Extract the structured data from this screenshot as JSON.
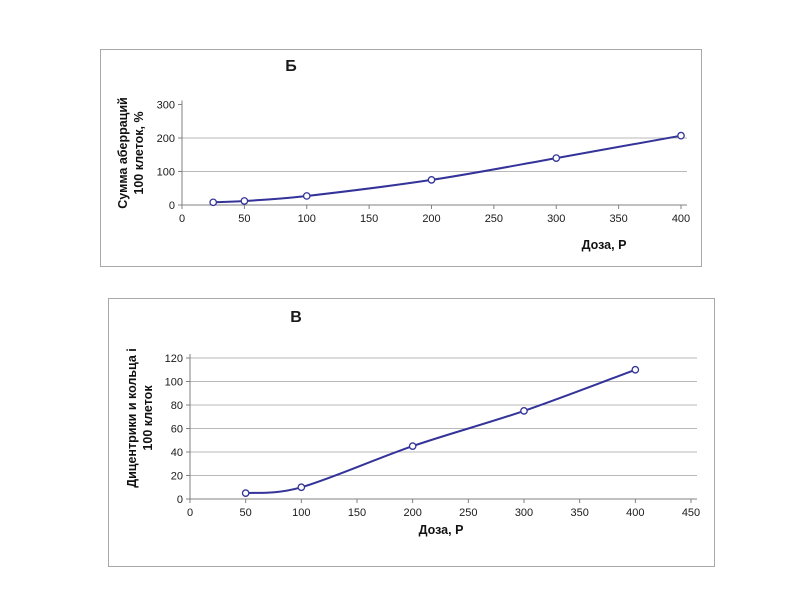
{
  "page": {
    "background": "#ffffff"
  },
  "colors": {
    "line": "#333399",
    "marker_fill": "#ffffff",
    "grid": "#b9b9b9",
    "axis": "#808080",
    "panel_border": "#a8a8a8",
    "text": "#1a1a1a"
  },
  "chart_data": [
    {
      "type": "line",
      "title": "Б",
      "xlabel": "Доза, Р",
      "ylabel_line1": "Сумма аберраций",
      "ylabel_line2": "100 клеток, %",
      "x": [
        25,
        50,
        100,
        200,
        300,
        400
      ],
      "y": [
        8,
        12,
        27,
        75,
        140,
        207
      ],
      "xlim": [
        0,
        400
      ],
      "ylim": [
        0,
        300
      ],
      "xticks": [
        0,
        50,
        100,
        150,
        200,
        250,
        300,
        350,
        400
      ],
      "yticks": [
        0,
        100,
        200,
        300
      ],
      "gridlines_y": [
        100,
        200
      ],
      "legend": "none",
      "marker": "circle",
      "line_style": "smooth"
    },
    {
      "type": "line",
      "title": "В",
      "xlabel": "Доза, Р",
      "ylabel_line1": "Дицентрики и кольца і",
      "ylabel_line2": "100 клеток",
      "x": [
        50,
        100,
        200,
        300,
        400
      ],
      "y": [
        5,
        10,
        45,
        75,
        110
      ],
      "xlim": [
        0,
        450
      ],
      "ylim": [
        0,
        120
      ],
      "xticks": [
        0,
        50,
        100,
        150,
        200,
        250,
        300,
        350,
        400,
        450
      ],
      "yticks": [
        0,
        20,
        40,
        60,
        80,
        100,
        120
      ],
      "gridlines_y": [
        20,
        40,
        60,
        80,
        100,
        120
      ],
      "legend": "none",
      "marker": "circle",
      "line_style": "smooth"
    }
  ]
}
